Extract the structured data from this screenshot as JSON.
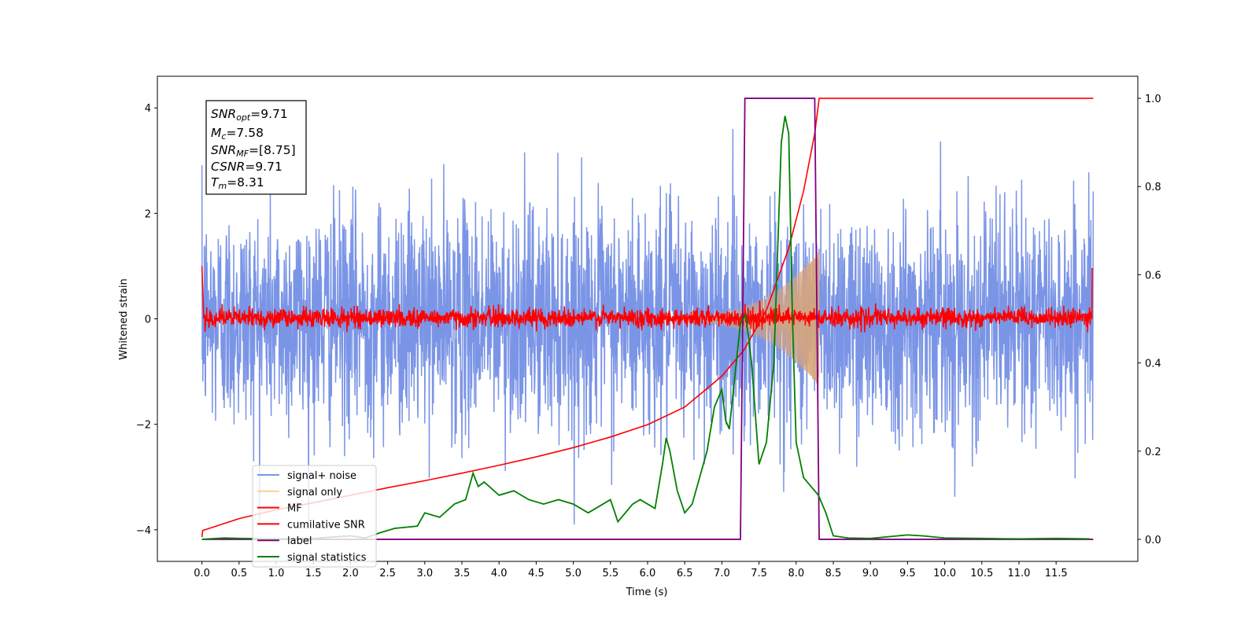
{
  "chart_data": {
    "type": "line",
    "xlabel": "Time (s)",
    "ylabel": "Whitened strain",
    "xlim": [
      -0.6,
      12.6
    ],
    "ylim": [
      -4.6,
      4.6
    ],
    "y2lim": [
      -0.05,
      1.05
    ],
    "x_ticks": [
      0.0,
      0.5,
      1.0,
      1.5,
      2.0,
      2.5,
      3.0,
      3.5,
      4.0,
      4.5,
      5.0,
      5.5,
      6.0,
      6.5,
      7.0,
      7.5,
      8.0,
      8.5,
      9.0,
      9.5,
      10.0,
      10.5,
      11.0,
      11.5
    ],
    "x_tick_labels": [
      "0.0",
      "0.5",
      "1.0",
      "1.5",
      "2.0",
      "2.5",
      "3.0",
      "3.5",
      "4.0",
      "4.5",
      "5.0",
      "5.5",
      "6.0",
      "6.5",
      "7.0",
      "7.5",
      "8.0",
      "8.5",
      "9.0",
      "9.5",
      "10.0",
      "10.5",
      "11.0",
      "11.5"
    ],
    "y_ticks": [
      -4,
      -2,
      0,
      2,
      4
    ],
    "y_tick_labels": [
      "−4",
      "−2",
      "0",
      "2",
      "4"
    ],
    "y2_ticks": [
      0.0,
      0.2,
      0.4,
      0.6,
      0.8,
      1.0
    ],
    "y2_tick_labels": [
      "0.0",
      "0.2",
      "0.4",
      "0.6",
      "0.8",
      "1.0"
    ],
    "annotation": {
      "snr_opt": {
        "main": "SNR",
        "sub": "opt",
        "rest": "=9.71"
      },
      "mc": {
        "main": "M",
        "sub": "c",
        "rest": "=7.58"
      },
      "snr_mf": {
        "main": "SNR",
        "sub": "MF",
        "rest": "=[8.75]"
      },
      "csnr": {
        "main": "CSNR",
        "rest": "=9.71"
      },
      "tm": {
        "main": "T",
        "sub": "m",
        "rest": "=8.31"
      }
    },
    "legend_position": "lower-left",
    "legend": [
      {
        "label": "signal+ noise",
        "color": "#7b95e6"
      },
      {
        "label": "signal only",
        "color": "#fbd08a"
      },
      {
        "label": "MF",
        "color": "#ff0000"
      },
      {
        "label": "cumilative SNR",
        "color": "#ff0000"
      },
      {
        "label": "label",
        "color": "#800080"
      },
      {
        "label": "signal statistics",
        "color": "#008000"
      }
    ],
    "series": [
      {
        "name": "signal+ noise",
        "axis": "left",
        "color": "#7b95e6",
        "description": "whitened noise, x from 0.0 to 12.0, envelope approx between -3.9 and 4.2"
      },
      {
        "name": "signal only",
        "axis": "left",
        "color": "#d8a57a",
        "description": "chirp growing from ~0.05 amplitude at t=6.2 to ~1.3 at t=8.31"
      },
      {
        "name": "MF",
        "axis": "left",
        "color": "#ff0000",
        "description": "matched-filter output, amplitude ~0.1-0.3 around 0, edge spikes to ~1.0 at t=0 and t=12"
      },
      {
        "name": "cumilative SNR",
        "axis": "right",
        "color": "#ff0000",
        "x": [
          0.0,
          0.01,
          0.5,
          1.0,
          1.5,
          2.0,
          2.5,
          3.0,
          3.5,
          4.0,
          4.5,
          5.0,
          5.5,
          6.0,
          6.5,
          7.0,
          7.3,
          7.6,
          7.9,
          8.1,
          8.25,
          8.31,
          12.0
        ],
        "y": [
          0.005,
          0.02,
          0.047,
          0.067,
          0.083,
          0.1,
          0.117,
          0.133,
          0.15,
          0.168,
          0.187,
          0.208,
          0.232,
          0.26,
          0.3,
          0.37,
          0.43,
          0.52,
          0.66,
          0.79,
          0.92,
          1.0,
          1.0
        ]
      },
      {
        "name": "label",
        "axis": "right",
        "color": "#800080",
        "x": [
          0.0,
          7.25,
          7.31,
          8.25,
          8.31,
          12.0
        ],
        "y": [
          0.0,
          0.0,
          1.0,
          1.0,
          0.0,
          0.0
        ]
      },
      {
        "name": "signal statistics",
        "axis": "right",
        "color": "#008000",
        "x": [
          0.0,
          0.3,
          0.5,
          1.0,
          1.5,
          2.0,
          2.2,
          2.4,
          2.6,
          2.9,
          3.0,
          3.2,
          3.4,
          3.55,
          3.65,
          3.72,
          3.8,
          4.0,
          4.2,
          4.4,
          4.6,
          4.8,
          5.0,
          5.2,
          5.4,
          5.5,
          5.6,
          5.8,
          5.9,
          6.1,
          6.2,
          6.25,
          6.3,
          6.4,
          6.5,
          6.6,
          6.8,
          6.9,
          7.0,
          7.05,
          7.1,
          7.2,
          7.25,
          7.32,
          7.4,
          7.5,
          7.6,
          7.7,
          7.8,
          7.85,
          7.9,
          7.95,
          8.0,
          8.05,
          8.1,
          8.2,
          8.3,
          8.4,
          8.5,
          8.7,
          9.0,
          9.5,
          9.7,
          10.0,
          10.5,
          11.0,
          11.5,
          11.95
        ],
        "y": [
          0.0,
          0.003,
          0.002,
          0.001,
          0.002,
          0.008,
          0.003,
          0.015,
          0.025,
          0.03,
          0.06,
          0.05,
          0.08,
          0.09,
          0.15,
          0.12,
          0.13,
          0.1,
          0.11,
          0.09,
          0.08,
          0.09,
          0.08,
          0.06,
          0.08,
          0.09,
          0.04,
          0.08,
          0.09,
          0.07,
          0.17,
          0.23,
          0.2,
          0.11,
          0.06,
          0.08,
          0.2,
          0.3,
          0.34,
          0.27,
          0.25,
          0.41,
          0.49,
          0.51,
          0.4,
          0.17,
          0.22,
          0.4,
          0.9,
          0.96,
          0.92,
          0.5,
          0.22,
          0.18,
          0.14,
          0.12,
          0.1,
          0.06,
          0.008,
          0.003,
          0.002,
          0.01,
          0.008,
          0.003,
          0.002,
          0.001,
          0.002,
          0.001
        ]
      }
    ]
  }
}
